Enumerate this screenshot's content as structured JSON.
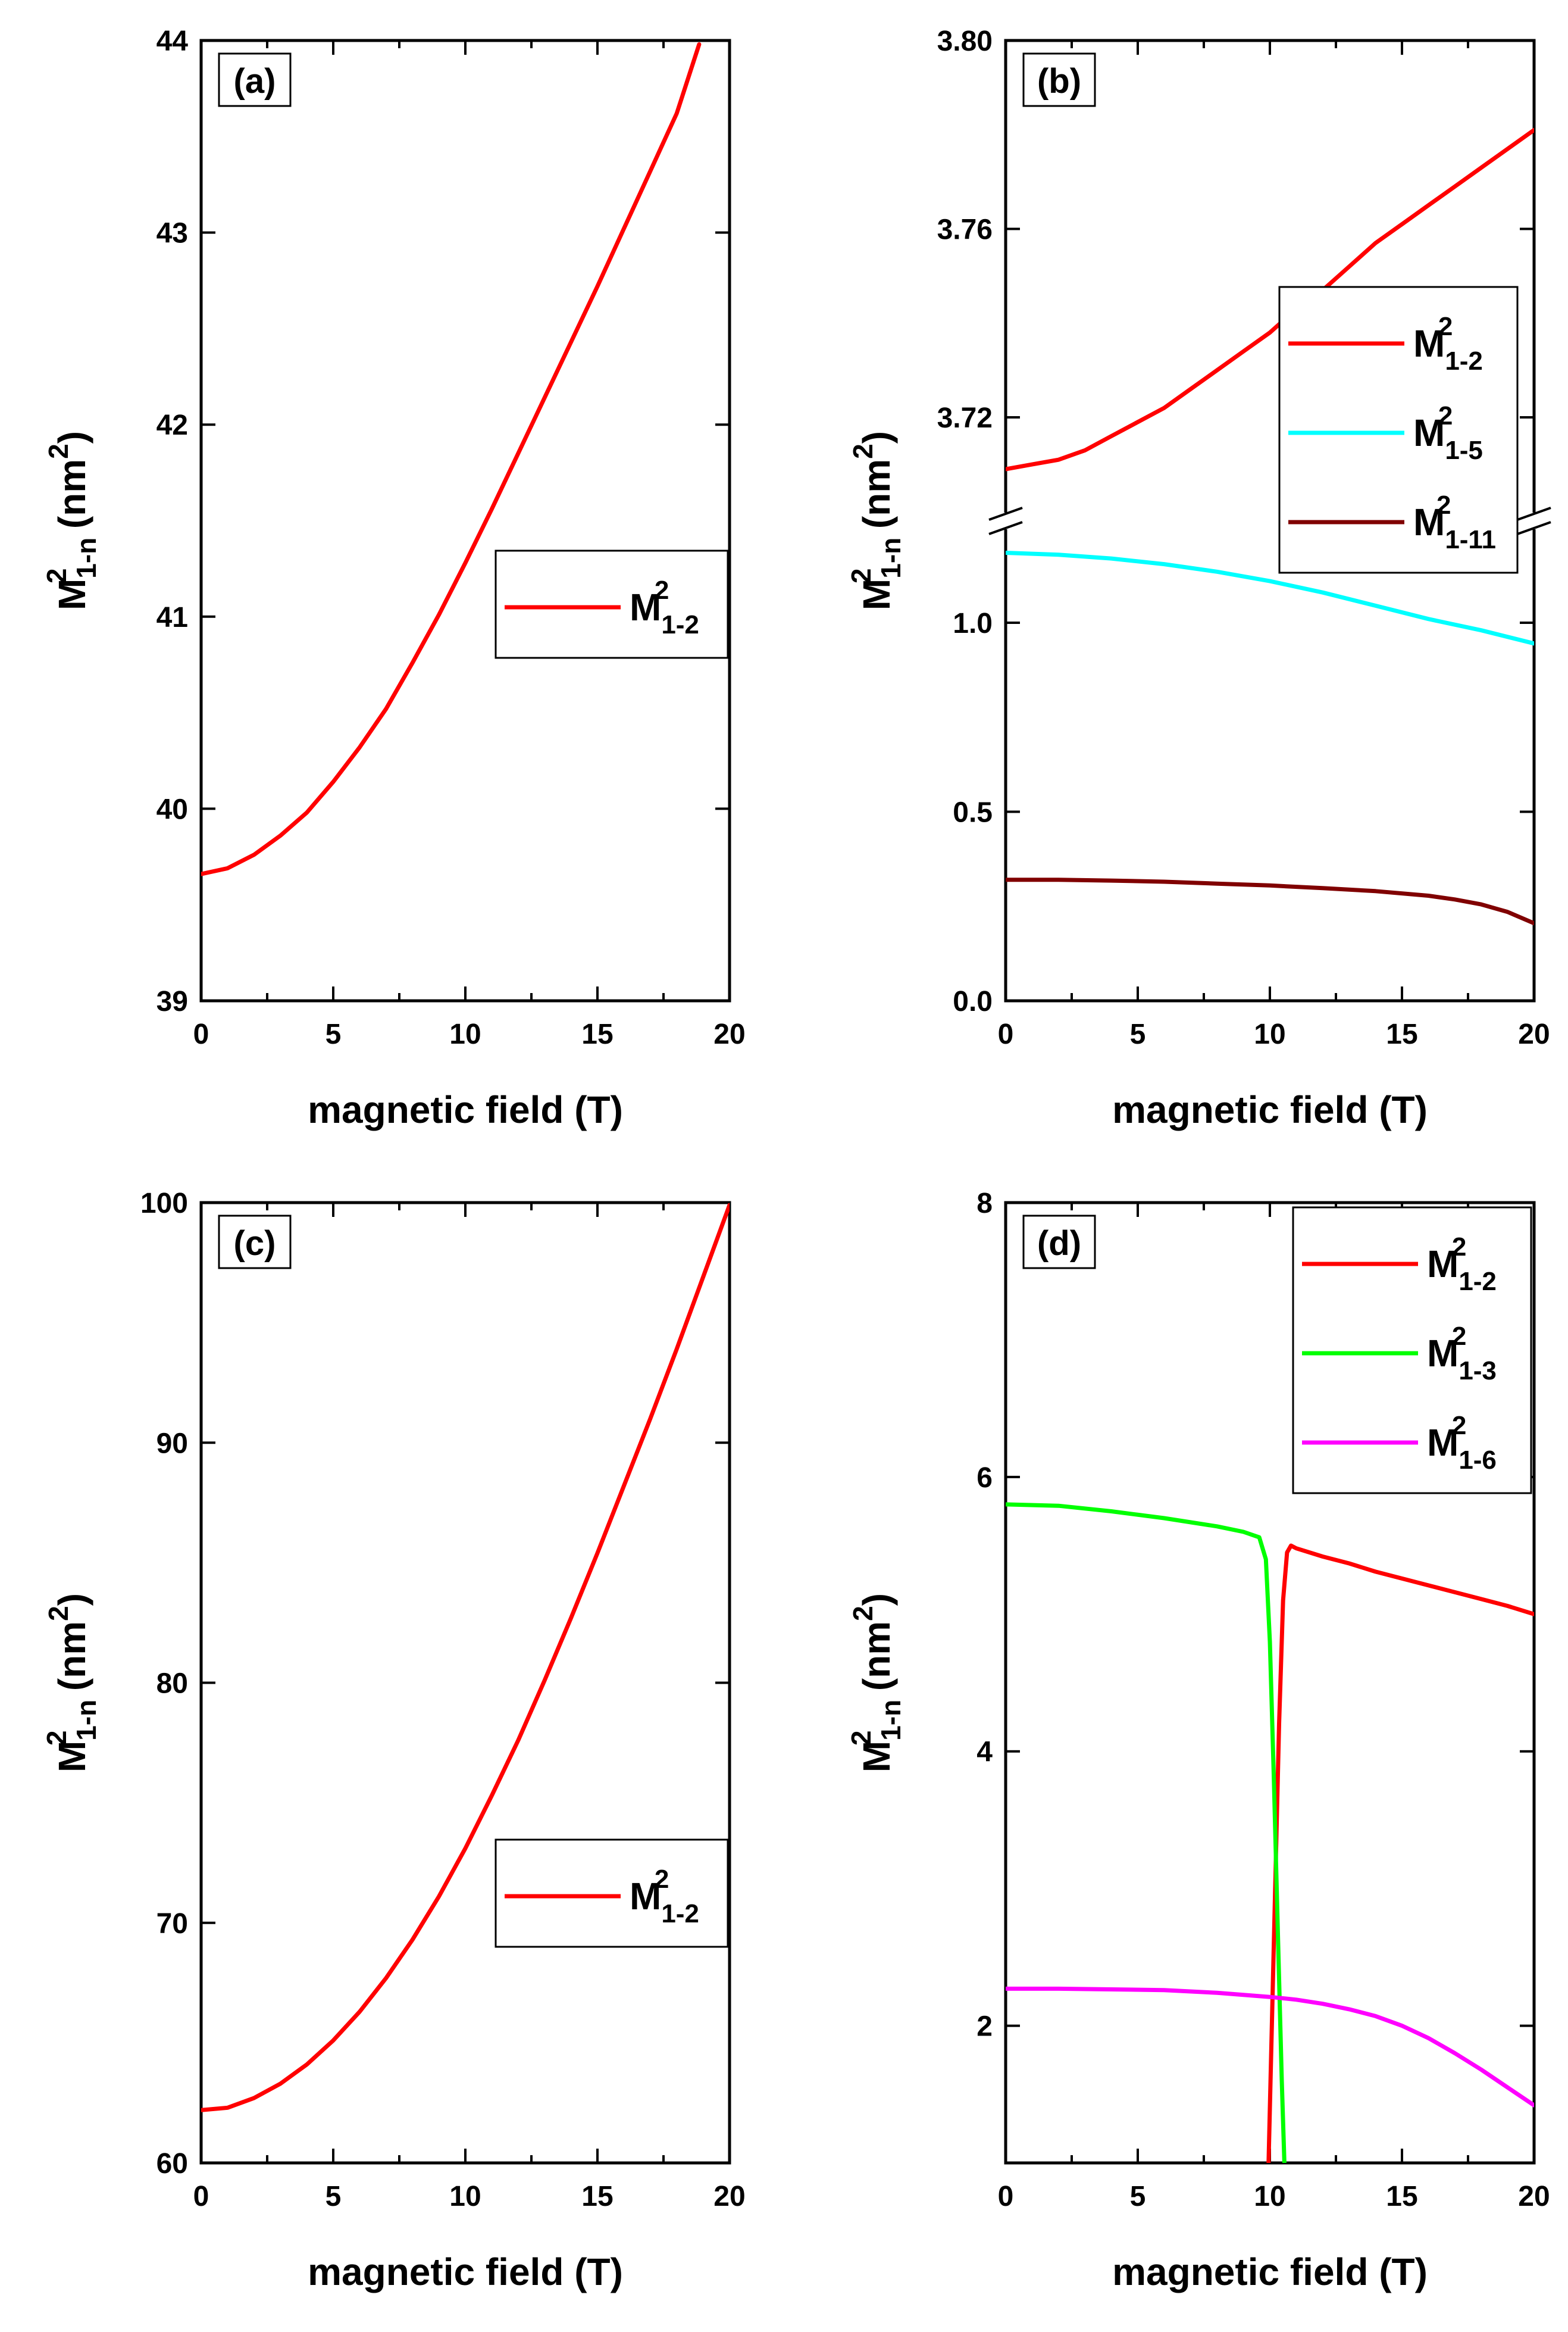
{
  "chart_data": [
    {
      "panel": "(a)",
      "type": "line",
      "xlabel": "magnetic field (T)",
      "ylabel": "M²₁₋ₙ (nm²)",
      "ylabel_parts": {
        "base": "M",
        "sup": "2",
        "sub": "1-n",
        "unit_open": " (nm",
        "unit_sup": "2",
        "unit_close": ")"
      },
      "xlim": [
        0,
        20
      ],
      "ylim": [
        39,
        44
      ],
      "xticks": [
        0,
        5,
        10,
        15,
        20
      ],
      "yticks": [
        39,
        40,
        41,
        42,
        43,
        44
      ],
      "legend_position": "center-right",
      "series": [
        {
          "name": "M²₁₋₂",
          "label_base": "M",
          "label_sup": "2",
          "label_sub": "1-2",
          "color": "#ff0000",
          "x": [
            0,
            1,
            2,
            3,
            4,
            5,
            6,
            7,
            8,
            9,
            10,
            11,
            12,
            13,
            14,
            15,
            16,
            17,
            18,
            18.85
          ],
          "y": [
            39.66,
            39.69,
            39.76,
            39.86,
            39.98,
            40.14,
            40.32,
            40.52,
            40.76,
            41.01,
            41.28,
            41.56,
            41.85,
            42.14,
            42.43,
            42.72,
            43.02,
            43.32,
            43.62,
            43.98
          ]
        }
      ]
    },
    {
      "panel": "(b)",
      "type": "line",
      "xlabel": "magnetic field (T)",
      "ylabel": "M²₁₋ₙ (nm²)",
      "ylabel_parts": {
        "base": "M",
        "sup": "2",
        "sub": "1-n",
        "unit_open": " (nm",
        "unit_sup": "2",
        "unit_close": ")"
      },
      "xlim": [
        0,
        20
      ],
      "broken_axis": true,
      "ylim_lower": [
        0.0,
        1.25
      ],
      "ylim_upper": [
        3.7,
        3.8
      ],
      "xticks": [
        0,
        5,
        10,
        15,
        20
      ],
      "yticks_lower": [
        "0.0",
        "0.5",
        "1.0"
      ],
      "yticks_upper": [
        "3.72",
        "3.76",
        "3.80"
      ],
      "legend_position": "upper-right",
      "series": [
        {
          "name": "M²₁₋₂",
          "label_base": "M",
          "label_sup": "2",
          "label_sub": "1-2",
          "color": "#ff0000",
          "x": [
            0,
            1,
            2,
            3,
            4,
            5,
            6,
            7,
            8,
            9,
            10,
            11,
            12,
            13,
            14,
            15,
            16,
            17,
            18,
            19,
            20
          ],
          "y": [
            3.709,
            3.71,
            3.711,
            3.713,
            3.716,
            3.719,
            3.722,
            3.726,
            3.73,
            3.734,
            3.738,
            3.743,
            3.747,
            3.752,
            3.757,
            3.761,
            3.765,
            3.769,
            3.773,
            3.777,
            3.781
          ]
        },
        {
          "name": "M²₁₋₅",
          "label_base": "M",
          "label_sup": "2",
          "label_sub": "1-5",
          "color": "#00ffff",
          "x": [
            0,
            2,
            4,
            6,
            8,
            10,
            12,
            14,
            16,
            18,
            20
          ],
          "y": [
            1.185,
            1.18,
            1.17,
            1.155,
            1.135,
            1.11,
            1.08,
            1.045,
            1.01,
            0.98,
            0.945
          ]
        },
        {
          "name": "M²₁₋₁₁",
          "label_base": "M",
          "label_sup": "2",
          "label_sub": "1-11",
          "color": "#800000",
          "x": [
            0,
            2,
            4,
            6,
            8,
            10,
            12,
            14,
            16,
            17,
            18,
            19,
            20
          ],
          "y": [
            0.32,
            0.32,
            0.318,
            0.315,
            0.31,
            0.305,
            0.298,
            0.29,
            0.278,
            0.268,
            0.255,
            0.235,
            0.205
          ]
        }
      ]
    },
    {
      "panel": "(c)",
      "type": "line",
      "xlabel": "magnetic field (T)",
      "ylabel": "M²₁₋ₙ (nm²)",
      "ylabel_parts": {
        "base": "M",
        "sup": "2",
        "sub": "1-n",
        "unit_open": " (nm",
        "unit_sup": "2",
        "unit_close": ")"
      },
      "xlim": [
        0,
        20
      ],
      "ylim": [
        60,
        100
      ],
      "xticks": [
        0,
        5,
        10,
        15,
        20
      ],
      "yticks": [
        60,
        70,
        80,
        90,
        100
      ],
      "legend_position": "lower-right",
      "series": [
        {
          "name": "M²₁₋₂",
          "label_base": "M",
          "label_sup": "2",
          "label_sub": "1-2",
          "color": "#ff0000",
          "x": [
            0,
            1,
            2,
            3,
            4,
            5,
            6,
            7,
            8,
            9,
            10,
            11,
            12,
            13,
            14,
            15,
            16,
            17,
            18,
            19,
            20
          ],
          "y": [
            62.2,
            62.3,
            62.7,
            63.3,
            64.1,
            65.1,
            66.3,
            67.7,
            69.3,
            71.1,
            73.1,
            75.3,
            77.6,
            80.1,
            82.7,
            85.4,
            88.2,
            91.0,
            93.9,
            96.9,
            99.9
          ]
        }
      ]
    },
    {
      "panel": "(d)",
      "type": "line",
      "xlabel": "magnetic field (T)",
      "ylabel": "M²₁₋ₙ (nm²)",
      "ylabel_parts": {
        "base": "M",
        "sup": "2",
        "sub": "1-n",
        "unit_open": " (nm",
        "unit_sup": "2",
        "unit_close": ")"
      },
      "xlim": [
        0,
        20
      ],
      "ylim": [
        1,
        8
      ],
      "xticks": [
        0,
        5,
        10,
        15,
        20
      ],
      "yticks": [
        2,
        4,
        6,
        8
      ],
      "legend_position": "top-right",
      "series": [
        {
          "name": "M²₁₋₂",
          "label_base": "M",
          "label_sup": "2",
          "label_sub": "1-2",
          "color": "#ff0000",
          "x": [
            9.95,
            10.05,
            10.2,
            10.35,
            10.5,
            10.65,
            10.8,
            11,
            12,
            13,
            14,
            15,
            16,
            17,
            18,
            19,
            20
          ],
          "y": [
            1.0,
            1.8,
            3.0,
            4.2,
            5.1,
            5.45,
            5.5,
            5.48,
            5.42,
            5.37,
            5.31,
            5.26,
            5.21,
            5.16,
            5.11,
            5.06,
            5.0
          ]
        },
        {
          "name": "M²₁₋₃",
          "label_base": "M",
          "label_sup": "2",
          "label_sub": "1-3",
          "color": "#00ff00",
          "x": [
            0,
            2,
            4,
            6,
            8,
            9,
            9.6,
            9.85,
            10.0,
            10.15,
            10.3,
            10.45,
            10.55
          ],
          "y": [
            5.8,
            5.79,
            5.75,
            5.7,
            5.64,
            5.6,
            5.56,
            5.4,
            4.8,
            3.8,
            2.7,
            1.6,
            1.0
          ]
        },
        {
          "name": "M²₁₋₆",
          "label_base": "M",
          "label_sup": "2",
          "label_sub": "1-6",
          "color": "#ff00ff",
          "x": [
            0,
            2,
            4,
            6,
            8,
            10,
            11,
            12,
            13,
            14,
            15,
            16,
            17,
            18,
            19,
            20
          ],
          "y": [
            2.27,
            2.27,
            2.265,
            2.26,
            2.24,
            2.21,
            2.19,
            2.16,
            2.12,
            2.07,
            2.0,
            1.91,
            1.8,
            1.68,
            1.55,
            1.42
          ]
        }
      ]
    }
  ]
}
